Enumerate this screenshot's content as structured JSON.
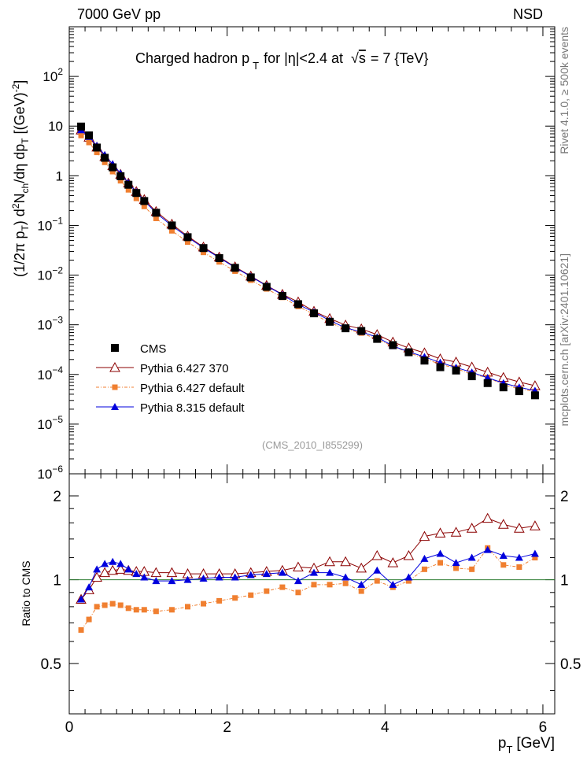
{
  "header": {
    "energy": "7000 GeV pp",
    "process": "NSD",
    "title_main": "Charged hadron p",
    "title_sub": "T",
    "title_eta": "for |η|<2.4 at",
    "title_sqrt": "√",
    "title_sqrt_arg": "s",
    "title_energy": "= 7 {TeV}",
    "analysis": "(CMS_2010_I855299)",
    "side_rivet": "Rivet 4.1.0, ≥ 500k events",
    "side_mcplots": "mcplots.cern.ch [arXiv:2401.10621]"
  },
  "axes": {
    "ylabel_top": "(1/2π p_T) d²N_ch/dη  dp_T [(GeV)⁻²]",
    "ylabel_ratio": "Ratio to CMS",
    "xlabel_main": "p",
    "xlabel_sub": "T",
    "xlabel_unit": "[GeV]",
    "x_ticks": [
      "0",
      "2",
      "4",
      "6"
    ],
    "top_y_ticks": [
      {
        "mant": "10",
        "exp": "2",
        "v": 100
      },
      {
        "mant": "10",
        "exp": "",
        "v": 10
      },
      {
        "mant": "1",
        "exp": "",
        "v": 1
      },
      {
        "mant": "10",
        "exp": "−1",
        "v": 0.1
      },
      {
        "mant": "10",
        "exp": "−2",
        "v": 0.01
      },
      {
        "mant": "10",
        "exp": "−3",
        "v": 0.001
      },
      {
        "mant": "10",
        "exp": "−4",
        "v": 0.0001
      },
      {
        "mant": "10",
        "exp": "−5",
        "v": 1e-05
      },
      {
        "mant": "10",
        "exp": "−6",
        "v": 1e-06
      }
    ],
    "ratio_y_ticks": [
      "0.5",
      "1",
      "2"
    ]
  },
  "legend": [
    {
      "label": "CMS",
      "color": "#000000",
      "marker": "square"
    },
    {
      "label": "Pythia 6.427 370",
      "color": "#8b0000",
      "marker": "open-triangle"
    },
    {
      "label": "Pythia 6.427 default",
      "color": "#f07f30",
      "marker": "small-square"
    },
    {
      "label": "Pythia 8.315 default",
      "color": "#0000dd",
      "marker": "triangle"
    }
  ],
  "chart_data": {
    "type": "line",
    "title": "Charged hadron pT for |η|<2.4 at √s = 7 {TeV}",
    "xlabel": "pT [GeV]",
    "ylabel": "(1/2π pT) d²Nch/dη dpT [(GeV)^-2]",
    "xlim": [
      0,
      6.15
    ],
    "ylim": [
      1e-06,
      1000
    ],
    "yscale": "log",
    "ratio_ylim": [
      0.33,
      2.4
    ],
    "x": [
      0.15,
      0.25,
      0.35,
      0.45,
      0.55,
      0.65,
      0.75,
      0.85,
      0.95,
      1.1,
      1.3,
      1.5,
      1.7,
      1.9,
      2.1,
      2.3,
      2.5,
      2.7,
      2.9,
      3.1,
      3.3,
      3.5,
      3.7,
      3.9,
      4.1,
      4.3,
      4.5,
      4.7,
      4.9,
      5.1,
      5.3,
      5.5,
      5.7,
      5.9
    ],
    "series": [
      {
        "name": "CMS",
        "values": [
          9.8,
          6.5,
          3.7,
          2.3,
          1.48,
          0.98,
          0.66,
          0.45,
          0.31,
          0.18,
          0.1,
          0.058,
          0.035,
          0.022,
          0.014,
          0.009,
          0.0058,
          0.0038,
          0.0026,
          0.0017,
          0.00115,
          0.00085,
          0.00075,
          0.00052,
          0.00039,
          0.00028,
          0.00019,
          0.00014,
          0.00012,
          9.2e-05,
          6.7e-05,
          5.5e-05,
          4.6e-05,
          3.8e-05
        ]
      },
      {
        "name": "Pythia 6.427 370",
        "ratio": [
          0.85,
          0.92,
          1.02,
          1.06,
          1.08,
          1.09,
          1.08,
          1.07,
          1.07,
          1.06,
          1.06,
          1.05,
          1.05,
          1.05,
          1.05,
          1.06,
          1.07,
          1.08,
          1.11,
          1.1,
          1.16,
          1.16,
          1.1,
          1.22,
          1.15,
          1.22,
          1.43,
          1.47,
          1.48,
          1.53,
          1.66,
          1.58,
          1.53,
          1.56
        ]
      },
      {
        "name": "Pythia 6.427 default",
        "ratio": [
          0.66,
          0.72,
          0.8,
          0.81,
          0.82,
          0.81,
          0.79,
          0.78,
          0.78,
          0.77,
          0.78,
          0.8,
          0.82,
          0.84,
          0.86,
          0.88,
          0.91,
          0.94,
          0.9,
          0.96,
          0.96,
          0.97,
          0.91,
          0.99,
          0.94,
          0.99,
          1.09,
          1.15,
          1.1,
          1.09,
          1.3,
          1.13,
          1.11,
          1.2
        ]
      },
      {
        "name": "Pythia 8.315 default",
        "ratio": [
          0.85,
          0.94,
          1.09,
          1.14,
          1.16,
          1.14,
          1.09,
          1.05,
          1.02,
          0.99,
          0.99,
          1.0,
          1.01,
          1.02,
          1.02,
          1.04,
          1.05,
          1.06,
          0.99,
          1.06,
          1.06,
          1.02,
          0.96,
          1.08,
          0.96,
          1.02,
          1.19,
          1.24,
          1.15,
          1.2,
          1.28,
          1.22,
          1.2,
          1.24
        ]
      }
    ]
  }
}
